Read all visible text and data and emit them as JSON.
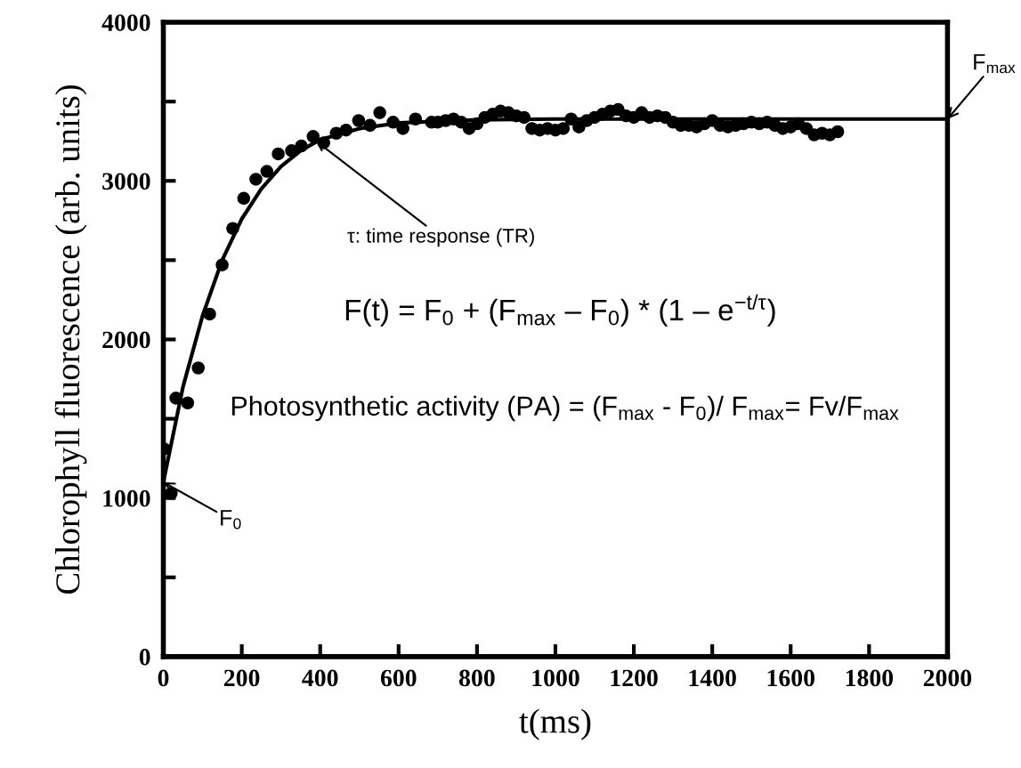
{
  "chart_data": {
    "type": "scatter",
    "xlabel": "t(ms)",
    "ylabel": "Chlorophyll fluorescence (arb. units)",
    "xlim": [
      0,
      2000
    ],
    "xticks": [
      0,
      200,
      400,
      600,
      800,
      1000,
      1200,
      1400,
      1600,
      1800,
      2000
    ],
    "ylim": [
      0,
      4000
    ],
    "yticks": [
      0,
      {
        "value": 500,
        "label": null
      },
      1000,
      {
        "value": 1500,
        "label": null
      },
      2000,
      {
        "value": 2500,
        "label": null
      },
      3000,
      {
        "value": 3500,
        "label": null
      },
      4000
    ],
    "grid": false,
    "series": [
      {
        "color": "#000000",
        "x": [
          2,
          20,
          32,
          62,
          89,
          118,
          150,
          177,
          205,
          236,
          264,
          293,
          327,
          352,
          382,
          409,
          441,
          466,
          498,
          527,
          552,
          586,
          611,
          643,
          684,
          700,
          720,
          740,
          760,
          780,
          800,
          820,
          840,
          860,
          880,
          900,
          920,
          940,
          960,
          980,
          1000,
          1020,
          1040,
          1060,
          1080,
          1100,
          1120,
          1140,
          1160,
          1180,
          1200,
          1220,
          1240,
          1260,
          1280,
          1300,
          1320,
          1340,
          1360,
          1380,
          1400,
          1420,
          1440,
          1460,
          1480,
          1500,
          1520,
          1540,
          1560,
          1580,
          1600,
          1620,
          1640,
          1660,
          1680,
          1700,
          1720
        ],
        "marker": "circle",
        "values": [
          1310,
          1030,
          1630,
          1600,
          1820,
          2160,
          2470,
          2700,
          2890,
          3010,
          3060,
          3170,
          3190,
          3220,
          3280,
          3240,
          3300,
          3320,
          3380,
          3350,
          3430,
          3370,
          3330,
          3390,
          3370,
          3370,
          3380,
          3390,
          3370,
          3330,
          3360,
          3400,
          3420,
          3440,
          3430,
          3410,
          3400,
          3330,
          3320,
          3330,
          3320,
          3330,
          3390,
          3340,
          3380,
          3400,
          3420,
          3440,
          3450,
          3410,
          3400,
          3430,
          3400,
          3410,
          3400,
          3370,
          3350,
          3350,
          3340,
          3360,
          3380,
          3350,
          3340,
          3350,
          3360,
          3370,
          3360,
          3370,
          3350,
          3330,
          3340,
          3360,
          3330,
          3290,
          3300,
          3290,
          3310
        ]
      },
      {
        "type": "line",
        "color": "#000000",
        "line_style": "solid",
        "marker": "none",
        "x": [
          0,
          50,
          100,
          150,
          200,
          250,
          300,
          350,
          400,
          500,
          600,
          800,
          1000,
          2000
        ],
        "values": [
          1100,
          1700,
          2150,
          2500,
          2760,
          2950,
          3090,
          3190,
          3260,
          3330,
          3365,
          3385,
          3390,
          3390
        ]
      }
    ],
    "annotations": [
      {
        "text": "F$_{0}$",
        "x": 0,
        "y": 1100
      },
      {
        "text": "τ: time response (TR)",
        "x": 390,
        "y": 3250
      },
      {
        "text": "F$_{max}$",
        "x": 2000,
        "y": 3390
      },
      "F(t) = F$_{0}$ + (F$_{max}$ – F$_{0}$) * (1 – e$^{−t/τ}$)",
      "Photosynthetic activity (PA) = (F$_{max}$ - F$_{0}$)/ F$_{max}$= Fv/F$_{max}$"
    ]
  }
}
